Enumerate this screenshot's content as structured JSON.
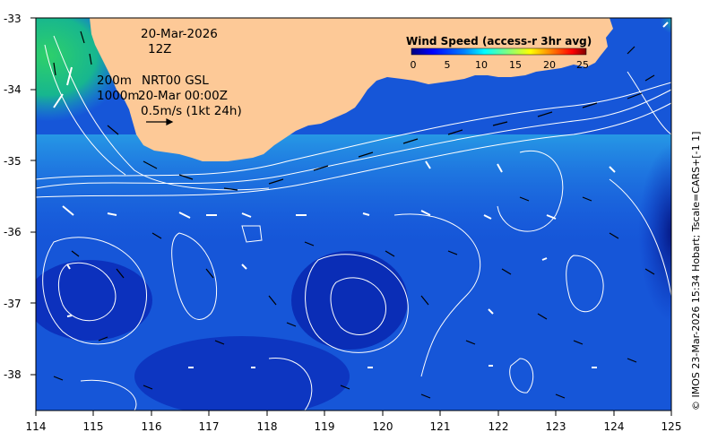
{
  "annotation": {
    "date": "20-Mar-2026",
    "hour": "12Z",
    "line1_depth": "200m",
    "line1_text": "NRT00 GSL",
    "line2_depth": "1000m",
    "line2_text": "20-Mar 00:00Z",
    "scale_text": "0.5m/s (1kt 24h)"
  },
  "colorbar": {
    "title": "Wind Speed (access-r 3hr avg)",
    "ticks": [
      "0",
      "5",
      "10",
      "15",
      "20",
      "25"
    ],
    "colors": [
      "#00007f",
      "#0000ff",
      "#007fff",
      "#00ffff",
      "#7fff7f",
      "#ffff00",
      "#ff7f00",
      "#ff0000",
      "#7f0000"
    ]
  },
  "axes": {
    "x_ticks": [
      "114",
      "115",
      "116",
      "117",
      "118",
      "119",
      "120",
      "121",
      "122",
      "123",
      "124",
      "125"
    ],
    "y_ticks": [
      "-33",
      "-34",
      "-35",
      "-36",
      "-37",
      "-38"
    ],
    "lon_range": [
      114,
      125
    ],
    "lat_range": [
      -38.5,
      -33
    ]
  },
  "credit": "© IMOS 23-Mar-2026 15:34 Hobart; Tscale=CARS+[-1 1]",
  "colors": {
    "land": "#fdc997",
    "ocean_deep": "#0a2fc0",
    "ocean_mid": "#1f6fe6",
    "ocean_light": "#2aa0e8",
    "coastal": "#22c07a",
    "contour": "#ffffff",
    "vector_black": "#000000",
    "vector_white": "#ffffff"
  }
}
